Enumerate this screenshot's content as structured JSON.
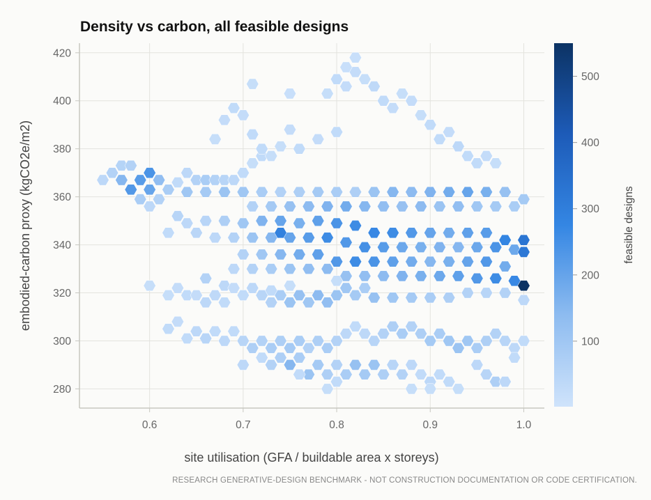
{
  "chart_data": {
    "type": "heatmap",
    "subtype": "hexbin",
    "title": "Density vs carbon, all feasible designs",
    "xlabel": "site utilisation (GFA / buildable area x storeys)",
    "ylabel": "embodied-carbon proxy (kgCO2e/m2)",
    "xlim": [
      0.525,
      1.022
    ],
    "ylim": [
      272,
      424
    ],
    "xticks": [
      0.6,
      0.7,
      0.8,
      0.9,
      1.0
    ],
    "xtick_labels": [
      "0.6",
      "0.7",
      "0.8",
      "0.9",
      "1.0"
    ],
    "yticks": [
      280,
      300,
      320,
      340,
      360,
      380,
      400,
      420
    ],
    "ytick_labels": [
      "280",
      "300",
      "320",
      "340",
      "360",
      "380",
      "400",
      "420"
    ],
    "grid": true,
    "hex_size_x": 0.01,
    "colorbar": {
      "label": "feasible designs",
      "min": 1,
      "max": 550,
      "ticks": [
        100,
        200,
        300,
        400,
        500
      ],
      "tick_labels": [
        "100",
        "200",
        "300",
        "400",
        "500"
      ],
      "colors": [
        "#cfe3fb",
        "#8ebcf0",
        "#3486e3",
        "#1d5bb8",
        "#0c3364"
      ]
    },
    "bins": [
      [
        0.55,
        367,
        40
      ],
      [
        0.56,
        370,
        60
      ],
      [
        0.57,
        373,
        55
      ],
      [
        0.58,
        373,
        60
      ],
      [
        0.57,
        367,
        150
      ],
      [
        0.59,
        367,
        220
      ],
      [
        0.6,
        370,
        240
      ],
      [
        0.61,
        367,
        130
      ],
      [
        0.58,
        363,
        230
      ],
      [
        0.6,
        363,
        200
      ],
      [
        0.62,
        363,
        80
      ],
      [
        0.59,
        359,
        80
      ],
      [
        0.61,
        359,
        60
      ],
      [
        0.6,
        356,
        40
      ],
      [
        0.63,
        366,
        30
      ],
      [
        0.64,
        370,
        40
      ],
      [
        0.65,
        367,
        60
      ],
      [
        0.66,
        367,
        80
      ],
      [
        0.67,
        367,
        60
      ],
      [
        0.68,
        367,
        50
      ],
      [
        0.69,
        367,
        40
      ],
      [
        0.7,
        370,
        30
      ],
      [
        0.71,
        374,
        20
      ],
      [
        0.72,
        377,
        30
      ],
      [
        0.73,
        377,
        20
      ],
      [
        0.64,
        362,
        100
      ],
      [
        0.66,
        362,
        90
      ],
      [
        0.68,
        362,
        110
      ],
      [
        0.7,
        362,
        100
      ],
      [
        0.72,
        362,
        80
      ],
      [
        0.74,
        362,
        60
      ],
      [
        0.76,
        362,
        70
      ],
      [
        0.78,
        362,
        90
      ],
      [
        0.8,
        362,
        80
      ],
      [
        0.82,
        362,
        70
      ],
      [
        0.84,
        362,
        110
      ],
      [
        0.86,
        362,
        150
      ],
      [
        0.88,
        362,
        140
      ],
      [
        0.9,
        362,
        160
      ],
      [
        0.92,
        362,
        180
      ],
      [
        0.94,
        362,
        200
      ],
      [
        0.96,
        362,
        170
      ],
      [
        0.98,
        362,
        120
      ],
      [
        1.0,
        359,
        90
      ],
      [
        0.67,
        384,
        20
      ],
      [
        0.68,
        392,
        25
      ],
      [
        0.69,
        397,
        30
      ],
      [
        0.7,
        394,
        25
      ],
      [
        0.71,
        386,
        30
      ],
      [
        0.72,
        380,
        30
      ],
      [
        0.74,
        381,
        20
      ],
      [
        0.75,
        388,
        25
      ],
      [
        0.76,
        380,
        30
      ],
      [
        0.78,
        384,
        25
      ],
      [
        0.8,
        387,
        30
      ],
      [
        0.71,
        407,
        20
      ],
      [
        0.75,
        403,
        15
      ],
      [
        0.79,
        403,
        20
      ],
      [
        0.8,
        409,
        30
      ],
      [
        0.81,
        406,
        25
      ],
      [
        0.82,
        412,
        25
      ],
      [
        0.83,
        409,
        20
      ],
      [
        0.84,
        406,
        35
      ],
      [
        0.85,
        400,
        30
      ],
      [
        0.86,
        397,
        25
      ],
      [
        0.87,
        403,
        20
      ],
      [
        0.88,
        400,
        25
      ],
      [
        0.89,
        394,
        20
      ],
      [
        0.9,
        390,
        30
      ],
      [
        0.91,
        384,
        30
      ],
      [
        0.92,
        387,
        25
      ],
      [
        0.93,
        381,
        40
      ],
      [
        0.94,
        377,
        30
      ],
      [
        0.95,
        374,
        30
      ],
      [
        0.96,
        377,
        25
      ],
      [
        0.97,
        374,
        20
      ],
      [
        0.82,
        418,
        15
      ],
      [
        0.81,
        414,
        15
      ],
      [
        0.71,
        356,
        60
      ],
      [
        0.73,
        356,
        90
      ],
      [
        0.75,
        356,
        120
      ],
      [
        0.77,
        356,
        140
      ],
      [
        0.79,
        356,
        160
      ],
      [
        0.81,
        356,
        180
      ],
      [
        0.83,
        356,
        150
      ],
      [
        0.85,
        356,
        130
      ],
      [
        0.87,
        356,
        120
      ],
      [
        0.89,
        356,
        140
      ],
      [
        0.91,
        356,
        110
      ],
      [
        0.93,
        356,
        130
      ],
      [
        0.95,
        356,
        100
      ],
      [
        0.97,
        356,
        90
      ],
      [
        0.99,
        356,
        80
      ],
      [
        0.66,
        350,
        50
      ],
      [
        0.68,
        350,
        70
      ],
      [
        0.7,
        349,
        100
      ],
      [
        0.72,
        350,
        160
      ],
      [
        0.74,
        350,
        200
      ],
      [
        0.76,
        349,
        170
      ],
      [
        0.78,
        350,
        210
      ],
      [
        0.8,
        349,
        240
      ],
      [
        0.82,
        348,
        260
      ],
      [
        0.84,
        345,
        270
      ],
      [
        0.86,
        345,
        260
      ],
      [
        0.88,
        345,
        230
      ],
      [
        0.9,
        345,
        200
      ],
      [
        0.92,
        345,
        180
      ],
      [
        0.94,
        345,
        210
      ],
      [
        0.96,
        345,
        220
      ],
      [
        0.98,
        342,
        280
      ],
      [
        1.0,
        342,
        330
      ],
      [
        0.67,
        343,
        40
      ],
      [
        0.69,
        343,
        60
      ],
      [
        0.71,
        343,
        110
      ],
      [
        0.73,
        343,
        150
      ],
      [
        0.74,
        345,
        290
      ],
      [
        0.75,
        343,
        200
      ],
      [
        0.77,
        343,
        220
      ],
      [
        0.79,
        343,
        260
      ],
      [
        0.81,
        341,
        230
      ],
      [
        0.83,
        339,
        250
      ],
      [
        0.85,
        339,
        220
      ],
      [
        0.87,
        339,
        190
      ],
      [
        0.89,
        339,
        170
      ],
      [
        0.91,
        339,
        160
      ],
      [
        0.93,
        339,
        150
      ],
      [
        0.95,
        339,
        190
      ],
      [
        0.97,
        339,
        240
      ],
      [
        0.99,
        338,
        190
      ],
      [
        1.0,
        337,
        320
      ],
      [
        0.7,
        336,
        60
      ],
      [
        0.72,
        336,
        100
      ],
      [
        0.74,
        336,
        150
      ],
      [
        0.76,
        336,
        180
      ],
      [
        0.78,
        336,
        210
      ],
      [
        0.8,
        333,
        230
      ],
      [
        0.82,
        333,
        260
      ],
      [
        0.84,
        333,
        240
      ],
      [
        0.86,
        333,
        210
      ],
      [
        0.88,
        333,
        180
      ],
      [
        0.9,
        333,
        150
      ],
      [
        0.92,
        333,
        170
      ],
      [
        0.94,
        333,
        200
      ],
      [
        0.96,
        333,
        230
      ],
      [
        0.98,
        331,
        180
      ],
      [
        0.69,
        330,
        40
      ],
      [
        0.71,
        330,
        60
      ],
      [
        0.73,
        330,
        80
      ],
      [
        0.75,
        330,
        110
      ],
      [
        0.77,
        330,
        130
      ],
      [
        0.79,
        330,
        140
      ],
      [
        0.81,
        327,
        120
      ],
      [
        0.83,
        327,
        130
      ],
      [
        0.85,
        327,
        140
      ],
      [
        0.87,
        327,
        160
      ],
      [
        0.89,
        327,
        170
      ],
      [
        0.91,
        327,
        190
      ],
      [
        0.93,
        327,
        210
      ],
      [
        0.95,
        326,
        230
      ],
      [
        0.97,
        326,
        260
      ],
      [
        0.99,
        325,
        270
      ],
      [
        1.0,
        323,
        550
      ],
      [
        0.66,
        326,
        60
      ],
      [
        0.68,
        323,
        40
      ],
      [
        0.6,
        323,
        20
      ],
      [
        0.62,
        319,
        20
      ],
      [
        0.63,
        322,
        25
      ],
      [
        0.64,
        319,
        30
      ],
      [
        0.65,
        319,
        25
      ],
      [
        0.66,
        316,
        40
      ],
      [
        0.67,
        319,
        35
      ],
      [
        0.68,
        316,
        30
      ],
      [
        0.69,
        322,
        25
      ],
      [
        0.7,
        319,
        30
      ],
      [
        0.71,
        322,
        40
      ],
      [
        0.72,
        319,
        50
      ],
      [
        0.73,
        316,
        60
      ],
      [
        0.74,
        319,
        80
      ],
      [
        0.75,
        316,
        110
      ],
      [
        0.76,
        319,
        120
      ],
      [
        0.77,
        316,
        100
      ],
      [
        0.78,
        319,
        140
      ],
      [
        0.79,
        316,
        130
      ],
      [
        0.8,
        319,
        110
      ],
      [
        0.81,
        322,
        100
      ],
      [
        0.82,
        319,
        90
      ],
      [
        0.83,
        322,
        80
      ],
      [
        0.84,
        318,
        120
      ],
      [
        0.86,
        318,
        100
      ],
      [
        0.88,
        318,
        90
      ],
      [
        0.9,
        318,
        80
      ],
      [
        0.92,
        318,
        70
      ],
      [
        0.94,
        320,
        60
      ],
      [
        0.96,
        320,
        50
      ],
      [
        0.98,
        320,
        60
      ],
      [
        1.0,
        317,
        40
      ],
      [
        0.75,
        323,
        20
      ],
      [
        0.73,
        321,
        30
      ],
      [
        0.8,
        325,
        20
      ],
      [
        0.62,
        305,
        30
      ],
      [
        0.63,
        308,
        25
      ],
      [
        0.64,
        301,
        30
      ],
      [
        0.65,
        304,
        40
      ],
      [
        0.66,
        301,
        50
      ],
      [
        0.67,
        304,
        30
      ],
      [
        0.68,
        300,
        40
      ],
      [
        0.69,
        304,
        30
      ],
      [
        0.7,
        300,
        50
      ],
      [
        0.71,
        297,
        70
      ],
      [
        0.72,
        300,
        60
      ],
      [
        0.73,
        297,
        80
      ],
      [
        0.74,
        300,
        70
      ],
      [
        0.75,
        297,
        90
      ],
      [
        0.76,
        300,
        80
      ],
      [
        0.77,
        297,
        60
      ],
      [
        0.78,
        300,
        70
      ],
      [
        0.79,
        297,
        80
      ],
      [
        0.8,
        300,
        60
      ],
      [
        0.81,
        303,
        40
      ],
      [
        0.82,
        306,
        30
      ],
      [
        0.83,
        303,
        40
      ],
      [
        0.84,
        300,
        50
      ],
      [
        0.85,
        303,
        60
      ],
      [
        0.86,
        306,
        70
      ],
      [
        0.87,
        303,
        80
      ],
      [
        0.88,
        306,
        60
      ],
      [
        0.89,
        303,
        70
      ],
      [
        0.9,
        300,
        90
      ],
      [
        0.91,
        303,
        80
      ],
      [
        0.92,
        300,
        100
      ],
      [
        0.93,
        297,
        110
      ],
      [
        0.94,
        300,
        100
      ],
      [
        0.95,
        297,
        80
      ],
      [
        0.96,
        300,
        70
      ],
      [
        0.97,
        303,
        60
      ],
      [
        0.98,
        300,
        50
      ],
      [
        0.99,
        297,
        40
      ],
      [
        1.0,
        300,
        30
      ],
      [
        0.7,
        290,
        40
      ],
      [
        0.72,
        293,
        30
      ],
      [
        0.73,
        290,
        60
      ],
      [
        0.74,
        293,
        70
      ],
      [
        0.75,
        290,
        150
      ],
      [
        0.76,
        293,
        80
      ],
      [
        0.77,
        286,
        110
      ],
      [
        0.78,
        290,
        90
      ],
      [
        0.79,
        286,
        70
      ],
      [
        0.8,
        290,
        60
      ],
      [
        0.81,
        286,
        80
      ],
      [
        0.82,
        290,
        120
      ],
      [
        0.83,
        286,
        90
      ],
      [
        0.84,
        290,
        110
      ],
      [
        0.85,
        286,
        70
      ],
      [
        0.86,
        290,
        50
      ],
      [
        0.87,
        286,
        60
      ],
      [
        0.88,
        290,
        40
      ],
      [
        0.89,
        286,
        30
      ],
      [
        0.9,
        283,
        40
      ],
      [
        0.91,
        286,
        30
      ],
      [
        0.92,
        283,
        30
      ],
      [
        0.93,
        280,
        20
      ],
      [
        0.95,
        290,
        40
      ],
      [
        0.96,
        286,
        50
      ],
      [
        0.97,
        283,
        70
      ],
      [
        0.98,
        283,
        40
      ],
      [
        0.99,
        293,
        30
      ],
      [
        0.8,
        283,
        30
      ],
      [
        0.79,
        280,
        20
      ],
      [
        0.76,
        286,
        30
      ],
      [
        0.88,
        280,
        20
      ],
      [
        0.9,
        280,
        20
      ],
      [
        0.62,
        345,
        30
      ],
      [
        0.64,
        349,
        40
      ],
      [
        0.63,
        352,
        50
      ],
      [
        0.65,
        345,
        45
      ]
    ]
  }
}
